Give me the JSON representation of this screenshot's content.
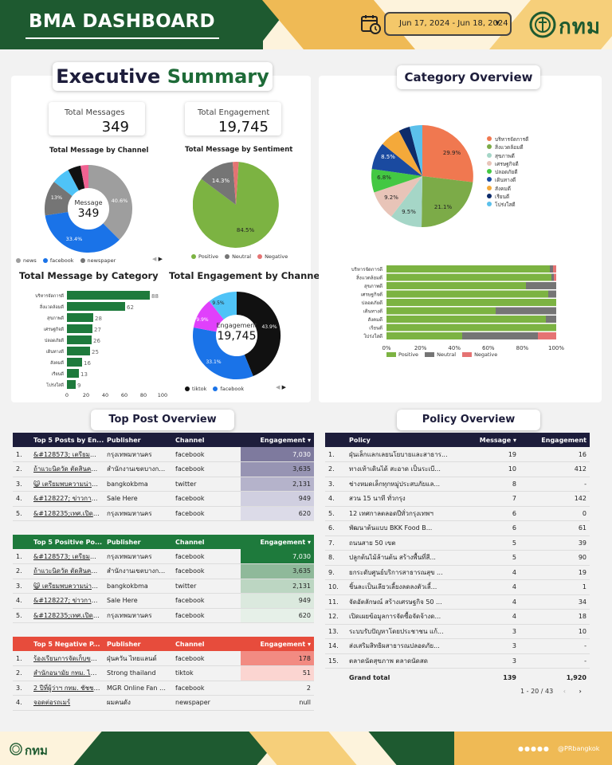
{
  "header": {
    "title": "BMA DASHBOARD",
    "date_range": "Jun 17, 2024 - Jun 18, 2024",
    "logo_text": "กทม"
  },
  "exec": {
    "title_a": "Executive",
    "title_b": "Summary",
    "total_messages_label": "Total Messages",
    "total_messages": "349",
    "total_engagement_label": "Total Engagement",
    "total_engagement": "19,745"
  },
  "channel_chart": {
    "title": "Total Message by Channel",
    "center_label": "Message",
    "center_value": "349",
    "slice_labels": [
      "40.6%",
      "33.4%",
      "13%"
    ],
    "legend": [
      "news",
      "facebook",
      "newspaper"
    ]
  },
  "sentiment_chart": {
    "title": "Total Message by Sentiment",
    "slice_labels": [
      "84.5%",
      "14.3%"
    ],
    "legend": [
      "Positive",
      "Neutral",
      "Negative"
    ]
  },
  "category_chart": {
    "title": "Total Message by Category",
    "x_ticks": [
      "0",
      "20",
      "40",
      "60",
      "80",
      "100"
    ]
  },
  "engagement_chart": {
    "title": "Total Engagement by Channel",
    "center_label": "Engagement",
    "center_value": "19,745",
    "slice_labels": [
      "43.9%",
      "33.1%",
      "9.9%",
      "9.5%"
    ],
    "legend": [
      "tiktok",
      "facebook"
    ]
  },
  "category_overview": {
    "title": "Category Overview",
    "pie_labels": [
      "29.9%",
      "21.1%",
      "9.5%",
      "9.2%",
      "6.8%",
      "8.5%"
    ],
    "legend": [
      "บริหารจัดการดี",
      "สิ่งแวดล้อมดี",
      "สุขภาพดี",
      "เศรษฐกิจดี",
      "ปลอดภัยดี",
      "เดินทางดี",
      "สังคมดี",
      "เรียนดี",
      "โปร่งใสดี"
    ],
    "bar_x_ticks": [
      "0%",
      "20%",
      "40%",
      "60%",
      "80%",
      "100%"
    ],
    "bar_legend": [
      "Positive",
      "Neutral",
      "Negative"
    ]
  },
  "top_post": {
    "title": "Top Post Overview"
  },
  "policy": {
    "title": "Policy Overview",
    "headers": [
      "Policy",
      "Message ▾",
      "Engagement"
    ],
    "rows": [
      [
        "1.",
        "ฝุ่นเล็กแลกเลยนโยบายและสาธาร...",
        "19",
        "16"
      ],
      [
        "2.",
        "ทางเท้าเดินได้ สะอาด เป็นระเบี...",
        "10",
        "412"
      ],
      [
        "3.",
        "ช่างหมดเล็กทุกหมู่ประสบภัยแล...",
        "8",
        "-"
      ],
      [
        "4.",
        "สวน 15 นาที ทั่วกรุง",
        "7",
        "142"
      ],
      [
        "5.",
        "12 เทศกาลตลอดปีทั่วกรุงเทพฯ",
        "6",
        "0"
      ],
      [
        "6.",
        "พัฒนาต้นแบบ BKK Food B...",
        "6",
        "61"
      ],
      [
        "7.",
        "ถนนสาย 50 เขต",
        "5",
        "39"
      ],
      [
        "8.",
        "ปลูกต้นไม้ล้านต้น สร้างพื้นที่สี...",
        "5",
        "90"
      ],
      [
        "9.",
        "ยกระดับศูนย์บริการสาธารณสุข ...",
        "4",
        "19"
      ],
      [
        "10.",
        "ชิ้นละเป็นเลียวเลี้ยงลดลงตัวเลี้...",
        "4",
        "1"
      ],
      [
        "11.",
        "จัดอัตลักษณ์ สร้างเศรษฐกิจ 50 ...",
        "4",
        "34"
      ],
      [
        "12.",
        "เปิดเผยข้อมูลการจัดซื้อจัดจ้างด...",
        "4",
        "18"
      ],
      [
        "13.",
        "ระบบรับปัญหาโดยประชาชน แก้...",
        "3",
        "10"
      ],
      [
        "14.",
        "ส่งเสริมสิทธิผสาธารณปลอดภัย...",
        "3",
        "-"
      ],
      [
        "15.",
        "ตลาดนัดสุขภาพ ตลาดนัดสด",
        "3",
        "-"
      ]
    ],
    "grand_total_label": "Grand total",
    "grand_total_msg": "139",
    "grand_total_eng": "1,920",
    "pager": "1 - 20 / 43"
  },
  "footer": {
    "logo_text": "กทม",
    "social": "@PRbangkok"
  }
}
